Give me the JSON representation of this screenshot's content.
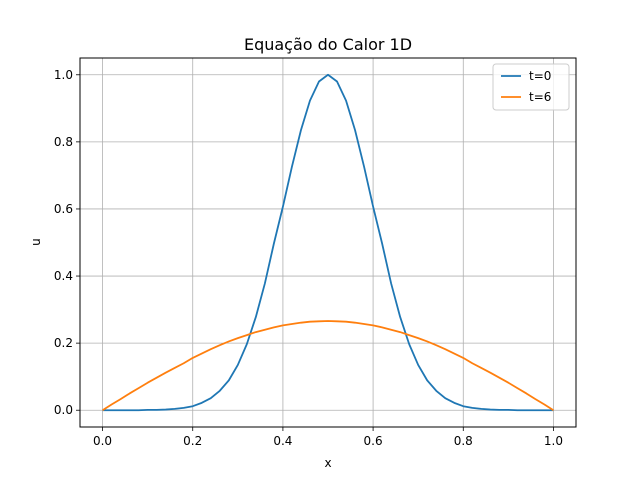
{
  "chart_data": {
    "type": "line",
    "title": "Equação do Calor 1D",
    "xlabel": "x",
    "ylabel": "u",
    "xlim": [
      -0.05,
      1.05
    ],
    "ylim": [
      -0.05,
      1.05
    ],
    "x_ticks": [
      0.0,
      0.2,
      0.4,
      0.6,
      0.8,
      1.0
    ],
    "x_tick_labels": [
      "0.0",
      "0.2",
      "0.4",
      "0.6",
      "0.8",
      "1.0"
    ],
    "y_ticks": [
      0.0,
      0.2,
      0.4,
      0.6,
      0.8,
      1.0
    ],
    "y_tick_labels": [
      "0.0",
      "0.2",
      "0.4",
      "0.6",
      "0.8",
      "1.0"
    ],
    "grid": true,
    "legend": "top-right",
    "series": [
      {
        "name": "t=0",
        "color": "#1f77b4",
        "x": [
          0.0,
          0.02,
          0.04,
          0.06,
          0.08,
          0.1,
          0.12,
          0.14,
          0.16,
          0.18,
          0.2,
          0.22,
          0.24,
          0.26,
          0.28,
          0.3,
          0.32,
          0.34,
          0.36,
          0.38,
          0.4,
          0.42,
          0.44,
          0.46,
          0.48,
          0.5,
          0.52,
          0.54,
          0.56,
          0.58,
          0.6,
          0.62,
          0.64,
          0.66,
          0.68,
          0.7,
          0.72,
          0.74,
          0.76,
          0.78,
          0.8,
          0.82,
          0.84,
          0.86,
          0.88,
          0.9,
          0.92,
          0.94,
          0.96,
          0.98,
          1.0
        ],
        "y": [
          0.0,
          0.0,
          0.0,
          0.0,
          0.0,
          0.001,
          0.001,
          0.002,
          0.004,
          0.007,
          0.012,
          0.022,
          0.036,
          0.058,
          0.089,
          0.135,
          0.197,
          0.278,
          0.378,
          0.497,
          0.607,
          0.726,
          0.835,
          0.923,
          0.98,
          1.0,
          0.98,
          0.923,
          0.835,
          0.726,
          0.607,
          0.497,
          0.378,
          0.278,
          0.197,
          0.135,
          0.089,
          0.058,
          0.036,
          0.022,
          0.012,
          0.007,
          0.004,
          0.002,
          0.001,
          0.001,
          0.0,
          0.0,
          0.0,
          0.0,
          0.0
        ]
      },
      {
        "name": "t=6",
        "color": "#ff7f0e",
        "x": [
          0.0,
          0.02,
          0.04,
          0.06,
          0.08,
          0.1,
          0.12,
          0.14,
          0.16,
          0.18,
          0.2,
          0.22,
          0.24,
          0.26,
          0.28,
          0.3,
          0.32,
          0.34,
          0.36,
          0.38,
          0.4,
          0.42,
          0.44,
          0.46,
          0.48,
          0.5,
          0.52,
          0.54,
          0.56,
          0.58,
          0.6,
          0.62,
          0.64,
          0.66,
          0.68,
          0.7,
          0.72,
          0.74,
          0.76,
          0.78,
          0.8,
          0.82,
          0.84,
          0.86,
          0.88,
          0.9,
          0.92,
          0.94,
          0.96,
          0.98,
          1.0
        ],
        "y": [
          0.0,
          0.017,
          0.033,
          0.05,
          0.066,
          0.082,
          0.097,
          0.112,
          0.126,
          0.14,
          0.156,
          0.169,
          0.182,
          0.194,
          0.205,
          0.215,
          0.224,
          0.233,
          0.24,
          0.247,
          0.253,
          0.257,
          0.261,
          0.264,
          0.265,
          0.266,
          0.265,
          0.264,
          0.261,
          0.257,
          0.253,
          0.247,
          0.24,
          0.233,
          0.224,
          0.215,
          0.205,
          0.194,
          0.182,
          0.169,
          0.156,
          0.14,
          0.126,
          0.112,
          0.097,
          0.082,
          0.066,
          0.05,
          0.033,
          0.017,
          0.0
        ]
      }
    ]
  }
}
